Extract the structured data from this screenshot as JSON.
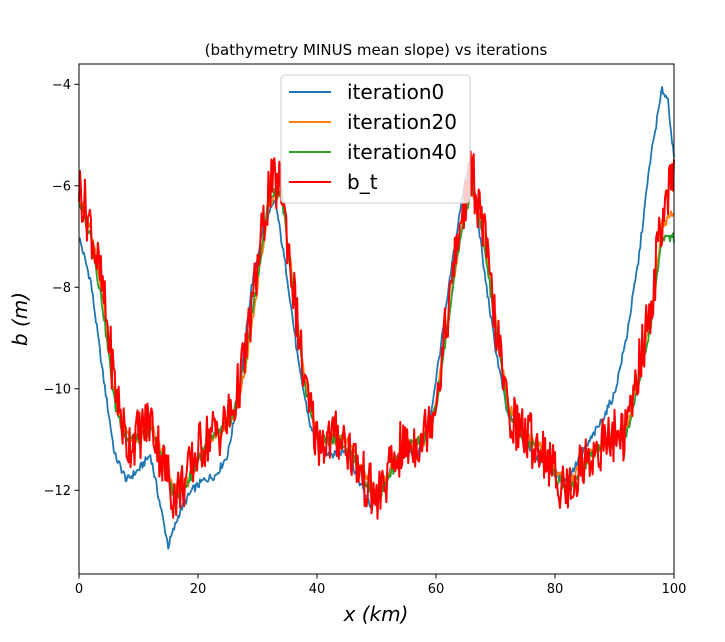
{
  "chart_data": {
    "type": "line",
    "title": "(bathymetry MINUS mean slope) vs iterations",
    "xlabel": "x (km)",
    "ylabel": "b (m)",
    "xlim": [
      0,
      100
    ],
    "ylim": [
      -13.65,
      -3.6
    ],
    "xticks": [
      0,
      20,
      40,
      60,
      80,
      100
    ],
    "xtick_labels": [
      "0",
      "20",
      "40",
      "60",
      "80",
      "100"
    ],
    "yticks": [
      -12,
      -10,
      -8,
      -6,
      -4
    ],
    "ytick_labels": [
      "−12",
      "−10",
      "−8",
      "−6",
      "−4"
    ],
    "grid": false,
    "legend_position": "top-center",
    "series": [
      {
        "name": "iteration0",
        "color": "#1f77b4",
        "x": [
          0,
          2,
          4,
          6,
          8,
          10,
          12,
          14,
          15,
          17,
          19,
          21,
          23,
          25,
          27,
          29,
          31,
          33,
          35,
          37,
          39,
          41,
          43,
          45,
          47,
          49,
          51,
          53,
          55,
          57,
          59,
          61,
          63,
          65,
          66,
          68,
          70,
          72,
          74,
          76,
          78,
          80,
          82,
          84,
          86,
          88,
          90,
          92,
          94,
          96,
          98,
          99,
          100
        ],
        "y": [
          -7.0,
          -7.9,
          -9.7,
          -11.3,
          -11.8,
          -11.6,
          -11.3,
          -12.5,
          -13.1,
          -12.4,
          -12.0,
          -11.8,
          -11.7,
          -11.3,
          -10.0,
          -8.0,
          -6.8,
          -6.3,
          -7.8,
          -9.6,
          -10.8,
          -11.2,
          -11.3,
          -11.2,
          -11.8,
          -12.3,
          -12.0,
          -11.4,
          -11.2,
          -11.3,
          -10.6,
          -9.0,
          -7.3,
          -5.8,
          -5.6,
          -7.6,
          -9.2,
          -10.5,
          -10.8,
          -11.2,
          -11.5,
          -11.7,
          -11.8,
          -11.4,
          -11.0,
          -10.6,
          -10.1,
          -9.0,
          -7.5,
          -5.5,
          -4.1,
          -4.3,
          -5.5
        ]
      },
      {
        "name": "iteration20",
        "color": "#ff7f0e",
        "x": [
          0,
          2,
          4,
          6,
          8,
          10,
          12,
          14,
          16,
          18,
          20,
          22,
          24,
          26,
          28,
          30,
          32,
          34,
          36,
          38,
          40,
          42,
          44,
          46,
          48,
          50,
          52,
          54,
          56,
          58,
          60,
          62,
          64,
          66,
          68,
          70,
          72,
          74,
          76,
          78,
          80,
          82,
          84,
          86,
          88,
          90,
          92,
          94,
          96,
          98,
          100
        ],
        "y": [
          -6.2,
          -6.9,
          -8.2,
          -10.2,
          -10.9,
          -11.0,
          -10.7,
          -11.3,
          -12.0,
          -11.9,
          -11.4,
          -11.0,
          -10.8,
          -10.6,
          -9.6,
          -8.0,
          -6.3,
          -6.1,
          -8.0,
          -9.9,
          -10.9,
          -11.0,
          -10.9,
          -11.2,
          -11.7,
          -12.1,
          -11.7,
          -11.2,
          -11.1,
          -11.0,
          -10.3,
          -8.6,
          -7.0,
          -6.0,
          -7.0,
          -8.6,
          -10.3,
          -10.8,
          -11.0,
          -11.2,
          -11.6,
          -11.9,
          -11.6,
          -11.3,
          -11.1,
          -10.9,
          -10.8,
          -9.8,
          -8.7,
          -6.8,
          -6.5
        ]
      },
      {
        "name": "iteration40",
        "color": "#2ca02c",
        "x": [
          0,
          2,
          4,
          6,
          8,
          10,
          12,
          14,
          16,
          18,
          20,
          22,
          24,
          26,
          28,
          30,
          32,
          34,
          36,
          38,
          40,
          42,
          44,
          46,
          48,
          50,
          52,
          54,
          56,
          58,
          60,
          62,
          64,
          66,
          68,
          70,
          72,
          74,
          76,
          78,
          80,
          82,
          84,
          86,
          88,
          90,
          92,
          94,
          96,
          98,
          100
        ],
        "y": [
          -6.3,
          -7.0,
          -8.4,
          -10.3,
          -11.0,
          -11.0,
          -10.8,
          -11.4,
          -12.1,
          -11.9,
          -11.4,
          -11.0,
          -10.8,
          -10.5,
          -9.4,
          -7.8,
          -6.2,
          -6.1,
          -8.1,
          -10.0,
          -10.9,
          -11.0,
          -11.0,
          -11.3,
          -11.8,
          -12.2,
          -11.8,
          -11.3,
          -11.1,
          -11.0,
          -10.4,
          -8.7,
          -7.1,
          -6.0,
          -7.1,
          -8.8,
          -10.4,
          -10.9,
          -11.1,
          -11.3,
          -11.7,
          -12.0,
          -11.7,
          -11.3,
          -11.1,
          -11.0,
          -10.9,
          -9.9,
          -8.8,
          -7.0,
          -7.0
        ]
      },
      {
        "name": "b_t",
        "color": "#ff0000",
        "x": [
          0,
          2,
          4,
          6,
          8,
          10,
          12,
          14,
          16,
          18,
          20,
          22,
          24,
          26,
          28,
          30,
          32,
          34,
          36,
          38,
          40,
          42,
          44,
          46,
          48,
          50,
          52,
          54,
          56,
          58,
          60,
          62,
          64,
          66,
          68,
          70,
          72,
          74,
          76,
          78,
          80,
          82,
          84,
          86,
          88,
          90,
          92,
          94,
          96,
          98,
          100
        ],
        "y": [
          -6.0,
          -6.8,
          -8.1,
          -9.9,
          -11.1,
          -10.9,
          -10.6,
          -11.4,
          -12.1,
          -11.8,
          -11.2,
          -10.9,
          -10.8,
          -10.4,
          -9.3,
          -7.6,
          -6.0,
          -6.0,
          -8.0,
          -10.0,
          -11.0,
          -11.0,
          -10.9,
          -11.3,
          -11.8,
          -12.2,
          -11.7,
          -11.2,
          -11.1,
          -10.9,
          -10.2,
          -8.5,
          -6.8,
          -5.7,
          -6.9,
          -8.7,
          -10.4,
          -10.8,
          -11.0,
          -11.2,
          -11.7,
          -12.0,
          -11.6,
          -11.3,
          -11.1,
          -10.9,
          -10.9,
          -9.6,
          -8.5,
          -6.6,
          -5.9
        ]
      }
    ]
  }
}
